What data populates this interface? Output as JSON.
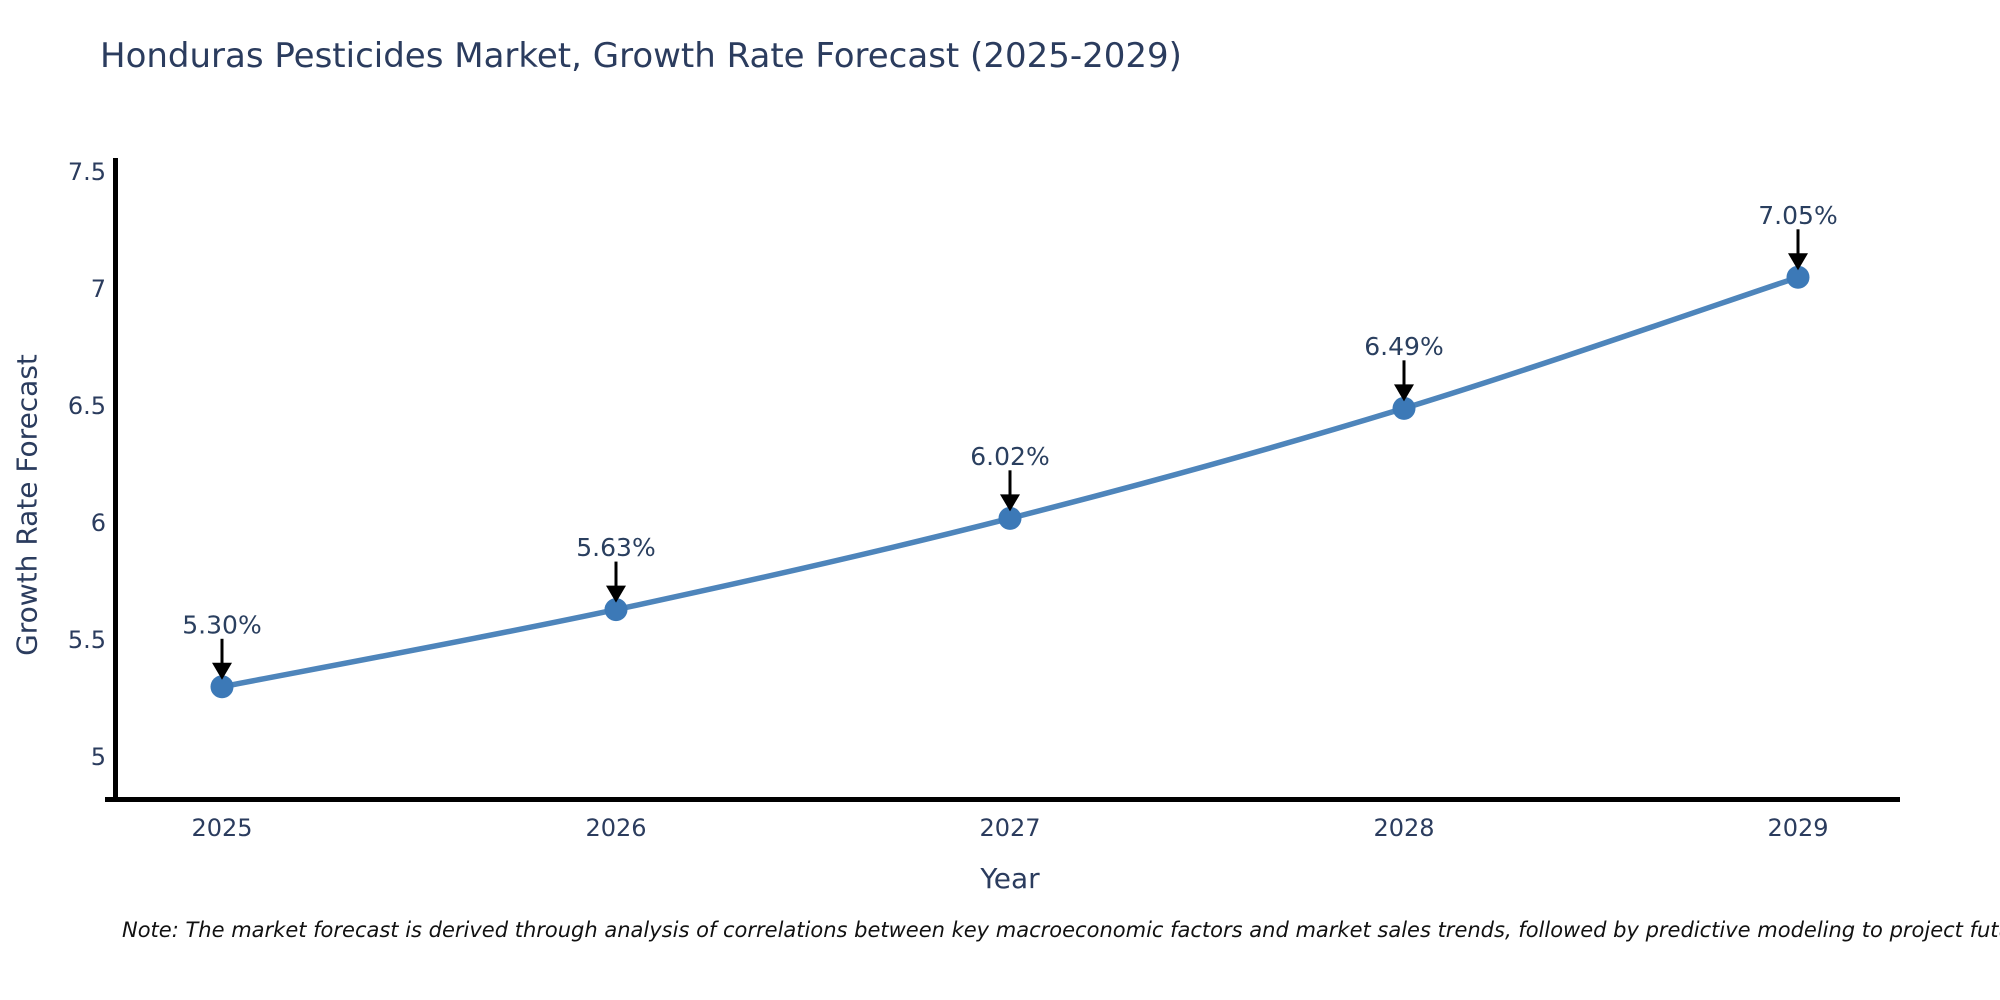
{
  "title": "Honduras Pesticides Market, Growth Rate Forecast (2025-2029)",
  "note": "Note: The market forecast is derived through analysis of correlations between key macroeconomic factors and market sales trends, followed by predictive modeling to project future sales",
  "chart_data": {
    "type": "line",
    "title": "Honduras Pesticides Market, Growth Rate Forecast (2025-2029)",
    "xlabel": "Year",
    "ylabel": "Growth Rate Forecast",
    "categories": [
      "2025",
      "2026",
      "2027",
      "2028",
      "2029"
    ],
    "values": [
      5.3,
      5.63,
      6.02,
      6.49,
      7.05
    ],
    "point_labels": [
      "5.30%",
      "5.63%",
      "6.02%",
      "6.49%",
      "7.05%"
    ],
    "ytick_values": [
      5,
      5.5,
      6,
      6.5,
      7,
      7.5
    ],
    "ytick_labels": [
      "5",
      "5.5",
      "6",
      "6.5",
      "7",
      "7.5"
    ],
    "ylim": [
      4.81,
      7.56
    ],
    "grid": false,
    "legend": false,
    "line_shape": "spline",
    "annotation_arrows": true,
    "colors": {
      "line": "#4e85bb",
      "marker": "#3c79b7",
      "axis": "#000000",
      "tick_text": "#2b3c5e",
      "annotation_text": "#2a3f5f",
      "arrow": "#000000"
    }
  }
}
